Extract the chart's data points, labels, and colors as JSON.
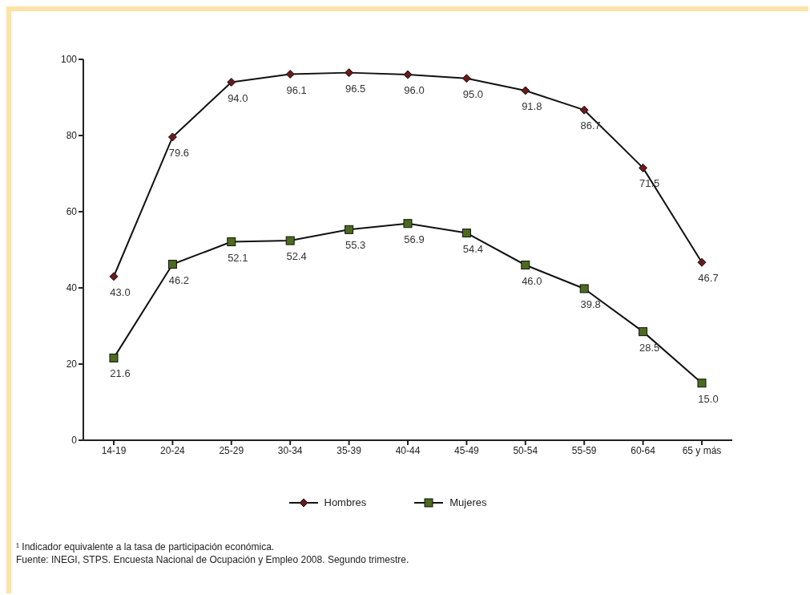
{
  "chart_data": {
    "type": "line",
    "categories": [
      "14-19",
      "20-24",
      "25-29",
      "30-34",
      "35-39",
      "40-44",
      "45-49",
      "50-54",
      "55-59",
      "60-64",
      "65 y más"
    ],
    "series": [
      {
        "name": "Hombres",
        "color": "#6b1a1a",
        "marker": "diamond",
        "values": [
          43.0,
          79.6,
          94.0,
          96.1,
          96.5,
          96.0,
          95.0,
          91.8,
          86.7,
          71.5,
          46.7
        ],
        "value_labels": [
          "43.0",
          "79.6",
          "94.0",
          "96.1",
          "96.5",
          "96.0",
          "95.0",
          "91.8",
          "86.7",
          "71.5",
          "46.7"
        ]
      },
      {
        "name": "Mujeres",
        "color": "#4b6b1e",
        "marker": "square",
        "values": [
          21.6,
          46.2,
          52.1,
          52.4,
          55.3,
          56.9,
          54.4,
          46.0,
          39.8,
          28.5,
          15.0
        ],
        "value_labels": [
          "21.6",
          "46.2",
          "52.1",
          "52.4",
          "55.3",
          "56.9",
          "54.4",
          "46.0",
          "39.8",
          "28.5",
          "15.0"
        ]
      }
    ],
    "ylim": [
      0,
      100
    ],
    "yticks": [
      0,
      20,
      40,
      60,
      80,
      100
    ],
    "grid": false,
    "legend": "bottom",
    "annotations": [
      "¹ Indicador equivalente a la tasa de participación económica.",
      "Fuente: INEGI, STPS. Encuesta Nacional de Ocupación y Empleo 2008. Segundo trimestre."
    ]
  }
}
